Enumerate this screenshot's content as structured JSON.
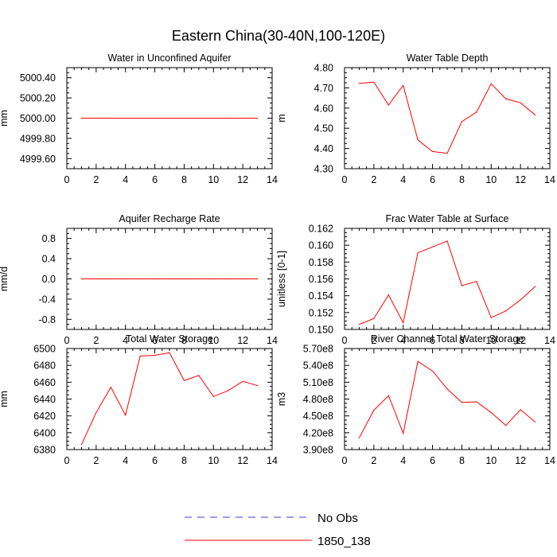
{
  "figure": {
    "title": "Eastern China(30-40N,100-120E)"
  },
  "legend": {
    "entries": [
      {
        "label": "No Obs",
        "color": "#3b3bd6",
        "dash": "dashed"
      },
      {
        "label": "1850_138",
        "color": "#ff0000",
        "dash": "solid"
      }
    ]
  },
  "chart_data": [
    {
      "type": "line",
      "title": "Water in Unconfined Aquifer",
      "ylabel": "mm",
      "xlim": [
        0,
        14
      ],
      "ylim": [
        4999.5,
        5000.5
      ],
      "xticks": [
        0,
        2,
        4,
        6,
        8,
        10,
        12,
        14
      ],
      "yticks": [
        4999.6,
        4999.8,
        5000.0,
        5000.2,
        5000.4
      ],
      "ytick_labels": [
        "4999.60",
        "4999.80",
        "5000.00",
        "5000.20",
        "5000.40"
      ],
      "grid": false,
      "series": [
        {
          "name": "1850_138",
          "color": "#ff0000",
          "x": [
            1,
            2,
            3,
            4,
            5,
            6,
            7,
            8,
            9,
            10,
            11,
            12,
            13
          ],
          "y": [
            5000,
            5000,
            5000,
            5000,
            5000,
            5000,
            5000,
            5000,
            5000,
            5000,
            5000,
            5000,
            5000
          ]
        }
      ]
    },
    {
      "type": "line",
      "title": "Water Table Depth",
      "ylabel": "m",
      "xlim": [
        0,
        14
      ],
      "ylim": [
        4.3,
        4.8
      ],
      "xticks": [
        0,
        2,
        4,
        6,
        8,
        10,
        12,
        14
      ],
      "yticks": [
        4.3,
        4.4,
        4.5,
        4.6,
        4.7,
        4.8
      ],
      "ytick_labels": [
        "4.30",
        "4.40",
        "4.50",
        "4.60",
        "4.70",
        "4.80"
      ],
      "grid": false,
      "series": [
        {
          "name": "1850_138",
          "color": "#ff0000",
          "x": [
            1,
            2,
            3,
            4,
            5,
            6,
            7,
            8,
            9,
            10,
            11,
            12,
            13
          ],
          "y": [
            4.722,
            4.728,
            4.615,
            4.712,
            4.442,
            4.385,
            4.376,
            4.533,
            4.58,
            4.72,
            4.646,
            4.626,
            4.566
          ]
        }
      ]
    },
    {
      "type": "line",
      "title": "Aquifer Recharge Rate",
      "ylabel": "mm/d",
      "xlim": [
        0,
        14
      ],
      "ylim": [
        -1.0,
        1.0
      ],
      "xticks": [
        0,
        2,
        4,
        6,
        8,
        10,
        12,
        14
      ],
      "yticks": [
        -0.8,
        -0.4,
        0.0,
        0.4,
        0.8
      ],
      "ytick_labels": [
        "-0.8",
        "-0.4",
        "0.0",
        "0.4",
        "0.8"
      ],
      "grid": false,
      "series": [
        {
          "name": "1850_138",
          "color": "#ff0000",
          "x": [
            1,
            2,
            3,
            4,
            5,
            6,
            7,
            8,
            9,
            10,
            11,
            12,
            13
          ],
          "y": [
            0,
            0,
            0,
            0,
            0,
            0,
            0,
            0,
            0,
            0,
            0,
            0,
            0
          ]
        }
      ]
    },
    {
      "type": "line",
      "title": "Frac Water Table at Surface",
      "ylabel": "unitless [0-1]",
      "xlim": [
        0,
        14
      ],
      "ylim": [
        0.15,
        0.162
      ],
      "xticks": [
        0,
        2,
        4,
        6,
        8,
        10,
        12,
        14
      ],
      "yticks": [
        0.15,
        0.152,
        0.154,
        0.156,
        0.158,
        0.16,
        0.162
      ],
      "ytick_labels": [
        "0.150",
        "0.152",
        "0.154",
        "0.156",
        "0.158",
        "0.160",
        "0.162"
      ],
      "grid": false,
      "series": [
        {
          "name": "1850_138",
          "color": "#ff0000",
          "x": [
            1,
            2,
            3,
            4,
            5,
            6,
            7,
            8,
            9,
            10,
            11,
            12,
            13
          ],
          "y": [
            0.1506,
            0.1513,
            0.1541,
            0.1508,
            0.1591,
            0.1598,
            0.1605,
            0.1552,
            0.1557,
            0.1514,
            0.1522,
            0.1535,
            0.1551
          ]
        }
      ]
    },
    {
      "type": "line",
      "title": "Total Water Storage",
      "ylabel": "mm",
      "xlim": [
        0,
        14
      ],
      "ylim": [
        6380,
        6500
      ],
      "xticks": [
        0,
        2,
        4,
        6,
        8,
        10,
        12,
        14
      ],
      "yticks": [
        6380,
        6400,
        6420,
        6440,
        6460,
        6480,
        6500
      ],
      "ytick_labels": [
        "6380",
        "6400",
        "6420",
        "6440",
        "6460",
        "6480",
        "6500"
      ],
      "grid": false,
      "series": [
        {
          "name": "1850_138",
          "color": "#ff0000",
          "x": [
            1,
            2,
            3,
            4,
            5,
            6,
            7,
            8,
            9,
            10,
            11,
            12,
            13
          ],
          "y": [
            6386,
            6424,
            6454,
            6421,
            6491,
            6492,
            6495,
            6462,
            6468,
            6443,
            6450,
            6461,
            6456
          ]
        }
      ]
    },
    {
      "type": "line",
      "title": "River Channel Total Water Storage",
      "ylabel": "m3",
      "xlim": [
        0,
        14
      ],
      "ylim": [
        390000000,
        570000000
      ],
      "xticks": [
        0,
        2,
        4,
        6,
        8,
        10,
        12,
        14
      ],
      "yticks": [
        390000000,
        420000000,
        450000000,
        480000000,
        510000000,
        540000000,
        570000000
      ],
      "ytick_labels": [
        "3.90e8",
        "4.20e8",
        "4.50e8",
        "4.80e8",
        "5.10e8",
        "5.40e8",
        "5.70e8"
      ],
      "grid": false,
      "series": [
        {
          "name": "1850_138",
          "color": "#ff0000",
          "x": [
            1,
            2,
            3,
            4,
            5,
            6,
            7,
            8,
            9,
            10,
            11,
            12,
            13
          ],
          "y": [
            411000000,
            460000000,
            486000000,
            419000000,
            547000000,
            530000000,
            498000000,
            474000000,
            475000000,
            456000000,
            433000000,
            461000000,
            439000000
          ]
        }
      ]
    }
  ]
}
